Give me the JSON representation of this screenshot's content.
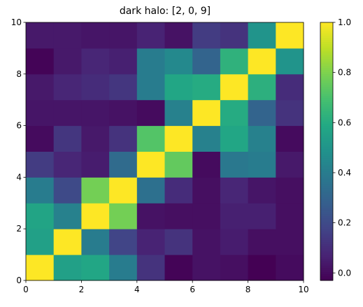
{
  "chart_data": {
    "type": "heatmap",
    "title": "dark halo: [2, 0, 9]",
    "xlim": [
      0,
      10
    ],
    "ylim": [
      0,
      10
    ],
    "xticks": [
      0,
      2,
      4,
      6,
      8,
      10
    ],
    "yticks": [
      0,
      2,
      4,
      6,
      8,
      10
    ],
    "colormap": "viridis",
    "clim": [
      -0.03,
      1.0
    ],
    "colorbar_ticks": [
      {
        "value": 0,
        "label": "0.0"
      },
      {
        "value": 0.2,
        "label": "0.2"
      },
      {
        "value": 0.4,
        "label": "0.4"
      },
      {
        "value": 0.6,
        "label": "0.6"
      },
      {
        "value": 0.8,
        "label": "0.8"
      },
      {
        "value": 1,
        "label": "1.0"
      }
    ],
    "z": [
      [
        1.0,
        0.55,
        0.58,
        0.4,
        0.12,
        -0.02,
        0.02,
        0.01,
        -0.03,
        0.0
      ],
      [
        0.55,
        1.0,
        0.4,
        0.18,
        0.07,
        0.12,
        0.02,
        0.05,
        0.01,
        0.01
      ],
      [
        0.57,
        0.42,
        1.0,
        0.78,
        0.02,
        0.01,
        0.01,
        0.06,
        0.06,
        0.01
      ],
      [
        0.4,
        0.2,
        0.78,
        1.0,
        0.35,
        0.1,
        0.01,
        0.08,
        0.03,
        0.01
      ],
      [
        0.15,
        0.08,
        0.05,
        0.33,
        1.0,
        0.75,
        0.0,
        0.38,
        0.4,
        0.04
      ],
      [
        0.0,
        0.13,
        0.04,
        0.12,
        0.72,
        1.0,
        0.42,
        0.58,
        0.42,
        0.0
      ],
      [
        0.03,
        0.03,
        0.03,
        0.02,
        0.0,
        0.42,
        1.0,
        0.6,
        0.3,
        0.12
      ],
      [
        0.04,
        0.08,
        0.1,
        0.13,
        0.4,
        0.58,
        0.6,
        1.0,
        0.62,
        0.1
      ],
      [
        -0.02,
        0.04,
        0.08,
        0.06,
        0.4,
        0.45,
        0.3,
        0.63,
        1.0,
        0.5
      ],
      [
        0.04,
        0.04,
        0.03,
        0.03,
        0.07,
        0.02,
        0.15,
        0.12,
        0.5,
        1.0
      ]
    ]
  }
}
